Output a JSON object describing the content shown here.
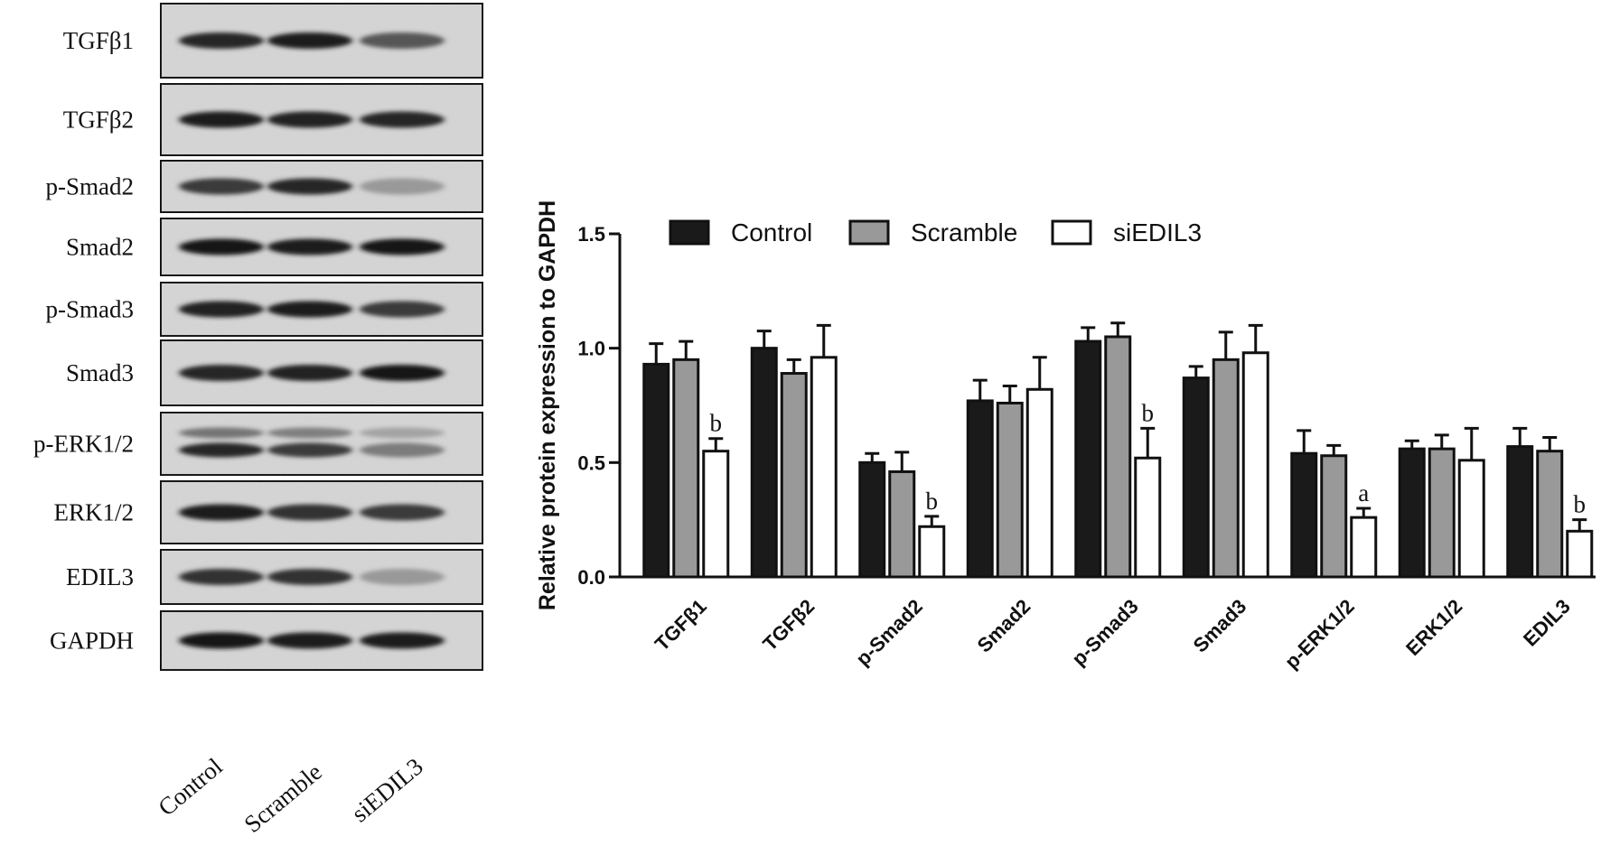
{
  "blot": {
    "lanes": [
      "Control",
      "Scramble",
      "siEDIL3"
    ],
    "proteins": [
      {
        "name": "TGFβ1",
        "intensity": [
          0.85,
          0.9,
          0.6
        ],
        "double": false
      },
      {
        "name": "TGFβ2",
        "intensity": [
          0.9,
          0.88,
          0.85
        ],
        "double": false
      },
      {
        "name": "p-Smad2",
        "intensity": [
          0.75,
          0.85,
          0.25
        ],
        "double": false
      },
      {
        "name": "Smad2",
        "intensity": [
          0.92,
          0.9,
          0.92
        ],
        "double": false
      },
      {
        "name": "p-Smad3",
        "intensity": [
          0.88,
          0.9,
          0.75
        ],
        "double": false
      },
      {
        "name": "Smad3",
        "intensity": [
          0.85,
          0.88,
          0.95
        ],
        "double": false
      },
      {
        "name": "p-ERK1/2",
        "intensity": [
          0.85,
          0.75,
          0.4
        ],
        "double": true
      },
      {
        "name": "ERK1/2",
        "intensity": [
          0.9,
          0.8,
          0.75
        ],
        "double": false
      },
      {
        "name": "EDIL3",
        "intensity": [
          0.8,
          0.8,
          0.25
        ],
        "double": false
      },
      {
        "name": "GAPDH",
        "intensity": [
          0.92,
          0.9,
          0.9
        ],
        "double": false
      }
    ]
  },
  "chart_data": {
    "type": "bar",
    "ylabel": "Relative protein expression to GAPDH",
    "ylim": [
      0,
      1.5
    ],
    "yticks": [
      "0.0",
      "0.5",
      "1.0",
      "1.5"
    ],
    "ytick_values": [
      0,
      0.5,
      1.0,
      1.5
    ],
    "categories": [
      "TGFβ1",
      "TGFβ2",
      "p-Smad2",
      "Smad2",
      "p-Smad3",
      "Smad3",
      "p-ERK1/2",
      "ERK1/2",
      "EDIL3"
    ],
    "series": [
      {
        "name": "Control",
        "color": "#1a1a1a",
        "values": [
          0.93,
          1.0,
          0.5,
          0.77,
          1.03,
          0.87,
          0.54,
          0.56,
          0.57
        ],
        "errors": [
          0.09,
          0.075,
          0.04,
          0.09,
          0.06,
          0.05,
          0.1,
          0.035,
          0.08
        ]
      },
      {
        "name": "Scramble",
        "color": "#999999",
        "values": [
          0.95,
          0.89,
          0.46,
          0.76,
          1.05,
          0.95,
          0.53,
          0.56,
          0.55
        ],
        "errors": [
          0.08,
          0.06,
          0.085,
          0.075,
          0.06,
          0.12,
          0.045,
          0.06,
          0.06
        ]
      },
      {
        "name": "siEDIL3",
        "color": "#ffffff",
        "values": [
          0.55,
          0.96,
          0.22,
          0.82,
          0.52,
          0.98,
          0.26,
          0.51,
          0.2
        ],
        "errors": [
          0.055,
          0.14,
          0.045,
          0.14,
          0.13,
          0.12,
          0.04,
          0.14,
          0.05
        ]
      }
    ],
    "annotations": [
      {
        "category": "TGFβ1",
        "series": "siEDIL3",
        "text": "b"
      },
      {
        "category": "p-Smad2",
        "series": "siEDIL3",
        "text": "b"
      },
      {
        "category": "p-Smad3",
        "series": "siEDIL3",
        "text": "b"
      },
      {
        "category": "p-ERK1/2",
        "series": "siEDIL3",
        "text": "a"
      },
      {
        "category": "EDIL3",
        "series": "siEDIL3",
        "text": "b"
      }
    ],
    "legend": {
      "placement": "top",
      "entries": [
        "Control",
        "Scramble",
        "siEDIL3"
      ]
    },
    "grid": false
  }
}
